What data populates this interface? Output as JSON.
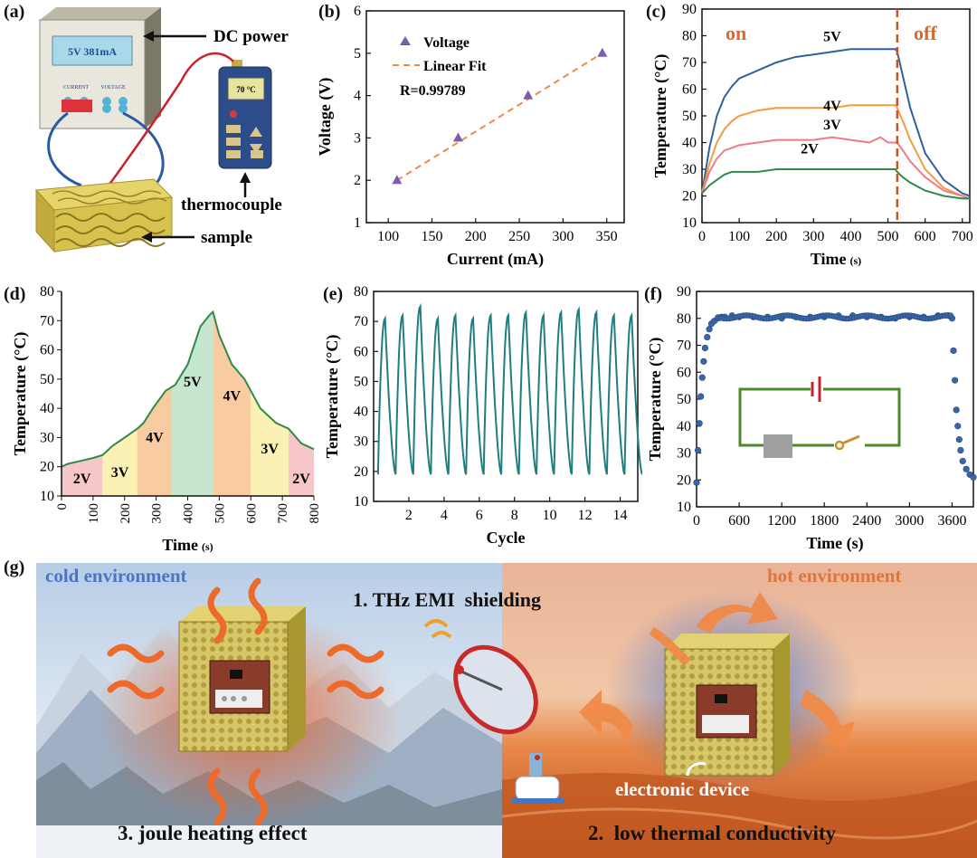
{
  "panel_labels": {
    "a": "(a)",
    "b": "(b)",
    "c": "(c)",
    "d": "(d)",
    "e": "(e)",
    "f": "(f)",
    "g": "(g)"
  },
  "schematic_a": {
    "dc_power": "DC power",
    "display_text": "5V  381mA",
    "current_label": "CURRENT",
    "voltage_label": "VOLTAGE",
    "meter_reading": "70 °C",
    "thermocouple": "thermocouple",
    "sample": "sample",
    "colors": {
      "power_box": "#e8e8e0",
      "meter": "#2b4c86",
      "lattice": "#d9c55a",
      "wire_red": "#c8232c",
      "wire_blue": "#2c5aa0"
    }
  },
  "chart_data": [
    {
      "id": "b",
      "type": "scatter",
      "title": "",
      "xlabel": "Current (mA)",
      "ylabel": "Voltage (V)",
      "xlim": [
        75,
        370
      ],
      "ylim": [
        1,
        6
      ],
      "xticks": [
        100,
        150,
        200,
        250,
        300,
        350
      ],
      "yticks": [
        1,
        2,
        3,
        4,
        5,
        6
      ],
      "series": [
        {
          "name": "Voltage",
          "marker": "triangle",
          "color": "#7b5ea7",
          "x": [
            110,
            180,
            260,
            345
          ],
          "y": [
            2,
            3,
            4,
            5
          ]
        },
        {
          "name": "Linear Fit",
          "style": "dashed",
          "color": "#f0884a",
          "x": [
            110,
            345
          ],
          "y": [
            2.0,
            5.0
          ]
        }
      ],
      "annotation": "R=0.99789",
      "legend": "top-left"
    },
    {
      "id": "c",
      "type": "line",
      "xlabel": "Time",
      "xlabel_unit": "(s)",
      "ylabel": "Temperature (°C)",
      "xlim": [
        0,
        720
      ],
      "ylim": [
        10,
        90
      ],
      "xticks": [
        0,
        100,
        200,
        300,
        400,
        500,
        600,
        700
      ],
      "yticks": [
        10,
        20,
        30,
        40,
        50,
        60,
        70,
        80,
        90
      ],
      "switch_time": 525,
      "on_label": "on",
      "off_label": "off",
      "series": [
        {
          "name": "5V",
          "color": "#2f5f9e",
          "x": [
            0,
            20,
            40,
            60,
            80,
            100,
            150,
            200,
            250,
            300,
            350,
            400,
            450,
            500,
            520,
            525,
            540,
            560,
            600,
            650,
            700,
            720
          ],
          "y": [
            21,
            38,
            50,
            57,
            61,
            64,
            67,
            70,
            72,
            73,
            74,
            75,
            75,
            75,
            75,
            74,
            65,
            53,
            36,
            26,
            21,
            20
          ]
        },
        {
          "name": "4V",
          "color": "#f39c3c",
          "x": [
            0,
            20,
            40,
            60,
            80,
            100,
            150,
            200,
            250,
            300,
            350,
            400,
            450,
            500,
            520,
            525,
            540,
            560,
            600,
            650,
            700,
            720
          ],
          "y": [
            21,
            32,
            40,
            45,
            48,
            50,
            52,
            53,
            53,
            53,
            53,
            54,
            54,
            54,
            54,
            53,
            48,
            41,
            30,
            23,
            20,
            19
          ]
        },
        {
          "name": "3V",
          "color": "#f07a86",
          "x": [
            0,
            20,
            40,
            60,
            80,
            100,
            150,
            200,
            250,
            300,
            350,
            400,
            450,
            480,
            500,
            520,
            525,
            540,
            560,
            600,
            650,
            700,
            720
          ],
          "y": [
            21,
            29,
            34,
            37,
            38,
            39,
            40,
            41,
            41,
            41,
            42,
            41,
            40,
            42,
            40,
            40,
            40,
            37,
            33,
            27,
            22,
            20,
            19
          ]
        },
        {
          "name": "2V",
          "color": "#2f8a4a",
          "x": [
            0,
            20,
            40,
            60,
            80,
            100,
            150,
            200,
            250,
            300,
            350,
            400,
            450,
            500,
            520,
            525,
            540,
            560,
            600,
            650,
            700,
            720
          ],
          "y": [
            21,
            24,
            26,
            28,
            29,
            29,
            29,
            30,
            30,
            30,
            30,
            30,
            30,
            30,
            30,
            29,
            27,
            25,
            22,
            20,
            19,
            19
          ]
        }
      ]
    },
    {
      "id": "d",
      "type": "area",
      "xlabel": "Time",
      "xlabel_unit": "(s)",
      "ylabel": "Temperature (°C)",
      "xlim": [
        0,
        800
      ],
      "ylim": [
        10,
        80
      ],
      "xticks": [
        0,
        100,
        200,
        300,
        400,
        500,
        600,
        700,
        800
      ],
      "yticks": [
        10,
        20,
        30,
        40,
        50,
        60,
        70,
        80
      ],
      "line_color": "#2f8a4a",
      "x": [
        0,
        20,
        60,
        100,
        130,
        160,
        200,
        240,
        260,
        290,
        330,
        360,
        400,
        440,
        470,
        480,
        500,
        540,
        580,
        600,
        630,
        680,
        720,
        760,
        800
      ],
      "y": [
        20,
        21,
        22,
        23,
        24,
        27,
        30,
        33,
        35,
        40,
        46,
        48,
        55,
        68,
        72,
        73,
        65,
        55,
        50,
        46,
        40,
        35,
        33,
        28,
        26
      ],
      "bands": [
        {
          "label": "2V",
          "start": 0,
          "end": 130,
          "color": "#f6c6c8"
        },
        {
          "label": "3V",
          "start": 130,
          "end": 240,
          "color": "#fbf1b5"
        },
        {
          "label": "4V",
          "start": 240,
          "end": 350,
          "color": "#f8cba0"
        },
        {
          "label": "5V",
          "start": 350,
          "end": 480,
          "color": "#c6e6cf"
        },
        {
          "label": "4V",
          "start": 480,
          "end": 600,
          "color": "#f8cba0"
        },
        {
          "label": "3V",
          "start": 600,
          "end": 720,
          "color": "#fbf1b5"
        },
        {
          "label": "2V",
          "start": 720,
          "end": 800,
          "color": "#f6c6c8"
        }
      ]
    },
    {
      "id": "e",
      "type": "line",
      "xlabel": "Cycle",
      "ylabel": "Temperature (°C)",
      "xlim": [
        0,
        15
      ],
      "ylim": [
        10,
        80
      ],
      "xticks": [
        2,
        4,
        6,
        8,
        10,
        12,
        14
      ],
      "yticks": [
        10,
        20,
        30,
        40,
        50,
        60,
        70,
        80
      ],
      "line_color": "#1f7f7f",
      "cycles": 15,
      "peaks": [
        71,
        72,
        75,
        71,
        72,
        71,
        72,
        72,
        73,
        72,
        73,
        74,
        73,
        72,
        72
      ],
      "valleys": [
        19,
        19,
        19,
        19,
        19,
        19,
        19,
        19,
        19,
        19,
        19,
        19,
        19,
        19,
        19
      ]
    },
    {
      "id": "f",
      "type": "scatter",
      "xlabel": "Time (s)",
      "ylabel": "Temperature (°C)",
      "xlim": [
        0,
        3900
      ],
      "ylim": [
        10,
        90
      ],
      "xticks": [
        0,
        600,
        1200,
        1800,
        2400,
        3000,
        3600
      ],
      "yticks": [
        10,
        20,
        30,
        40,
        50,
        60,
        70,
        80,
        90
      ],
      "marker_color": "#3a66a8",
      "x": [
        0,
        20,
        40,
        60,
        80,
        100,
        120,
        150,
        180,
        210,
        250,
        300,
        350,
        400,
        500,
        600,
        800,
        1000,
        1200,
        1400,
        1600,
        1800,
        2000,
        2200,
        2400,
        2600,
        2800,
        3000,
        3200,
        3400,
        3550,
        3600,
        3620,
        3640,
        3660,
        3680,
        3700,
        3720,
        3750,
        3800,
        3850,
        3900
      ],
      "y": [
        19,
        31,
        41,
        51,
        58,
        64,
        69,
        73,
        76,
        78,
        79,
        80,
        80.5,
        80.5,
        81,
        80.5,
        80.5,
        80.5,
        80,
        80.5,
        80.5,
        80.5,
        81,
        81,
        80.5,
        80.5,
        80,
        80.5,
        80.5,
        81,
        81,
        80,
        68,
        57,
        46,
        40,
        35,
        31,
        27,
        24,
        22,
        21
      ]
    }
  ],
  "scene_g": {
    "cold": "cold environment",
    "hot": "hot environment",
    "label1": "1. THz EMI  shielding",
    "label2": "2.  low thermal conductivity",
    "label3": "3. joule heating effect",
    "device": "electronic device",
    "colors": {
      "cold_text": "#4a74c8",
      "hot_text": "#e0743a",
      "heat_wave": "#ee6a2a"
    }
  }
}
